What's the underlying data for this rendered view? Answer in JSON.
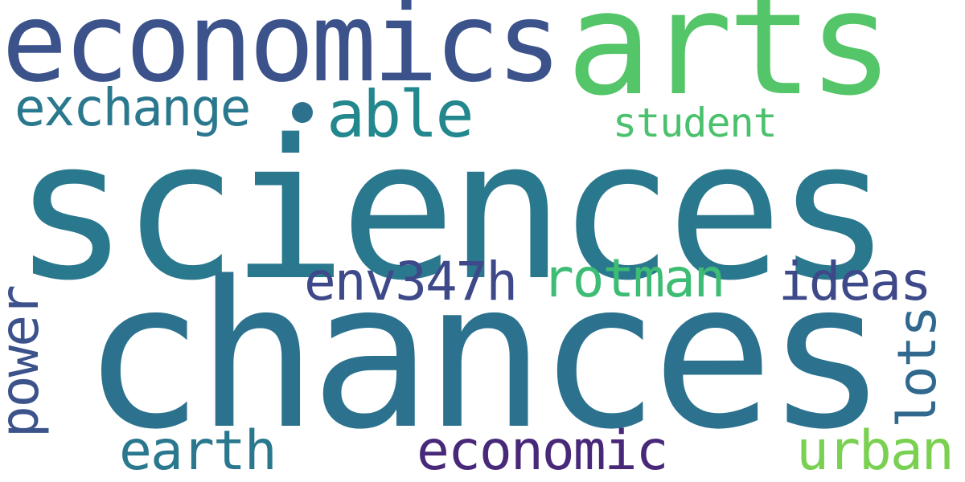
{
  "words": {
    "sciences": "sciences",
    "chances": "chances",
    "economics": "economics",
    "arts": "arts",
    "exchange": "exchange",
    "able": "able",
    "student": "student",
    "env347h": "env347h",
    "rotman": "rotman",
    "ideas": "ideas",
    "power": "power",
    "lots": "lots",
    "earth": "earth",
    "economic": "economic",
    "urban": "urban"
  },
  "colors": {
    "sciences": "#2a788e",
    "chances": "#2c728e",
    "economics": "#3b528b",
    "arts": "#54c568",
    "exchange": "#2a788e",
    "able": "#23888e",
    "student": "#4ac16d",
    "env347h": "#3e4989",
    "rotman": "#3dbc74",
    "ideas": "#3e4989",
    "power": "#3b528b",
    "lots": "#31688e",
    "earth": "#2a788e",
    "economic": "#482878",
    "urban": "#7ad151",
    "background": "#ffffff"
  }
}
